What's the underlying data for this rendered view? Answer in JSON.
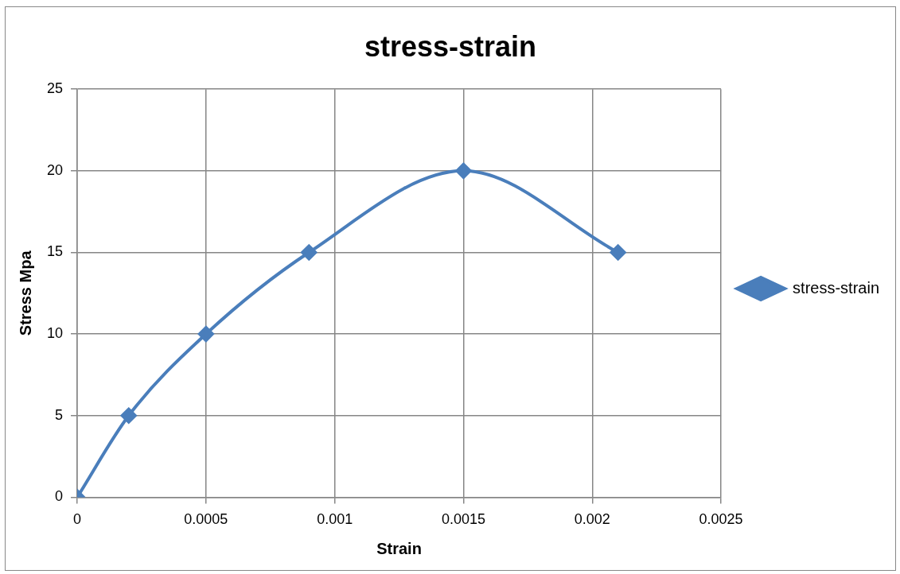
{
  "chart_data": {
    "type": "line",
    "title": "stress-strain",
    "xlabel": "Strain",
    "ylabel": "Stress Mpa",
    "x": [
      0,
      0.0002,
      0.0005,
      0.0009,
      0.0015,
      0.0021
    ],
    "series": [
      {
        "name": "stress-strain",
        "color": "#4a7ebb",
        "values": [
          0,
          5,
          10,
          15,
          20,
          15
        ]
      }
    ],
    "xlim": [
      0,
      0.0025
    ],
    "xticks": [
      0,
      0.0005,
      0.001,
      0.0015,
      0.002,
      0.0025
    ],
    "ylim": [
      0,
      25
    ],
    "yticks": [
      0,
      5,
      10,
      15,
      20,
      25
    ],
    "grid": true,
    "legend": "right",
    "marker": "diamond",
    "line_style": "solid"
  }
}
